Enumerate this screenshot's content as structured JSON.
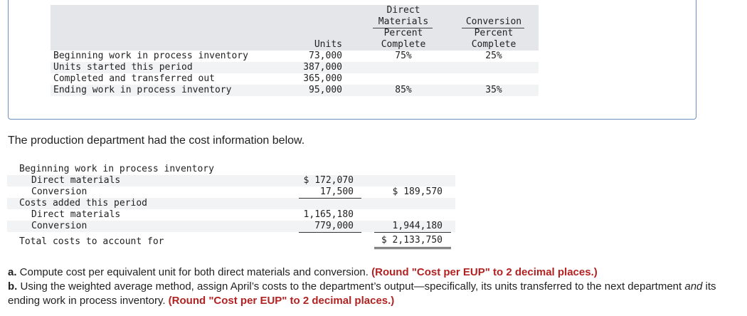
{
  "units_table": {
    "headers": {
      "units": "Units",
      "dm": [
        "Direct",
        "Materials",
        "Percent",
        "Complete"
      ],
      "conv": [
        "Conversion",
        "Percent",
        "Complete"
      ]
    },
    "rows": [
      {
        "label": "Beginning work in process inventory",
        "units": "73,000",
        "dm": "75%",
        "conv": "25%"
      },
      {
        "label": "Units started this period",
        "units": "387,000",
        "dm": "",
        "conv": ""
      },
      {
        "label": "Completed and transferred out",
        "units": "365,000",
        "dm": "",
        "conv": ""
      },
      {
        "label": "Ending work in process inventory",
        "units": "95,000",
        "dm": "85%",
        "conv": "35%"
      }
    ]
  },
  "cost_intro": "The production department had the cost information below.",
  "cost_table": {
    "beginning_heading": "Beginning work in process inventory",
    "beg_dm_label": "Direct materials",
    "beg_dm_value": "$ 172,070",
    "beg_conv_label": "Conversion",
    "beg_conv_value": "17,500",
    "beg_total": "$ 189,570",
    "added_heading": "Costs added this period",
    "add_dm_label": "Direct materials",
    "add_dm_value": "1,165,180",
    "add_conv_label": "Conversion",
    "add_conv_value": "779,000",
    "add_total": "1,944,180",
    "total_label": "Total costs to account for",
    "total_value": "$ 2,133,750"
  },
  "questions": {
    "a_label": "a.",
    "a_text": " Compute cost per equivalent unit for both direct materials and conversion. ",
    "a_round": "(Round \"Cost per EUP\" to 2 decimal places.)",
    "b_label": "b.",
    "b_text_1": " Using the weighted average method, assign April’s costs to the department’s output—specifically, its units transferred to the next department ",
    "b_and": "and",
    "b_text_2": " its ending work in process inventory. ",
    "b_round": "(Round \"Cost per EUP\" to 2 decimal places.)"
  }
}
